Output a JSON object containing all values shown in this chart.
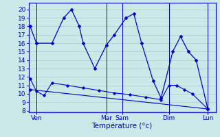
{
  "background_color": "#cce8e8",
  "grid_color": "#aacccc",
  "line_color": "#0000cc",
  "xlabel": "Température (°c)",
  "yticks": [
    8,
    9,
    10,
    11,
    12,
    13,
    14,
    15,
    16,
    17,
    18,
    19,
    20
  ],
  "ylim": [
    7.8,
    20.8
  ],
  "xlim": [
    0,
    24
  ],
  "day_ticks": [
    1.0,
    10.0,
    12.0,
    18.0,
    23.0
  ],
  "day_labels": [
    "Ven",
    "Mar",
    "Sam",
    "Dim",
    "Lun"
  ],
  "day_vlines": [
    1.0,
    10.0,
    12.0,
    18.0,
    23.0
  ],
  "line1_x": [
    0.2,
    1.0,
    3.0,
    4.5,
    5.5,
    6.5,
    7.0,
    8.5,
    10.0,
    11.0,
    12.5,
    13.5,
    14.5,
    16.0,
    17.0,
    18.5,
    19.5,
    20.5,
    21.5,
    23.0
  ],
  "line1_y": [
    18,
    16,
    16,
    19,
    20,
    18,
    16,
    13,
    15.8,
    17,
    19,
    19.5,
    16,
    11.5,
    9.5,
    15,
    16.8,
    15,
    14,
    8.2
  ],
  "line2_x": [
    0.2,
    1.0,
    2.0,
    3.0,
    5.0,
    7.0,
    9.0,
    11.0,
    13.0,
    15.0,
    17.0,
    18.0,
    19.0,
    20.0,
    21.0,
    23.0
  ],
  "line2_y": [
    11.8,
    10.3,
    9.8,
    11.3,
    11.0,
    10.7,
    10.4,
    10.1,
    9.9,
    9.6,
    9.3,
    11.0,
    11.0,
    10.5,
    10.0,
    8.2
  ],
  "line3_x": [
    0.2,
    23.0
  ],
  "line3_y": [
    10.5,
    8.2
  ]
}
